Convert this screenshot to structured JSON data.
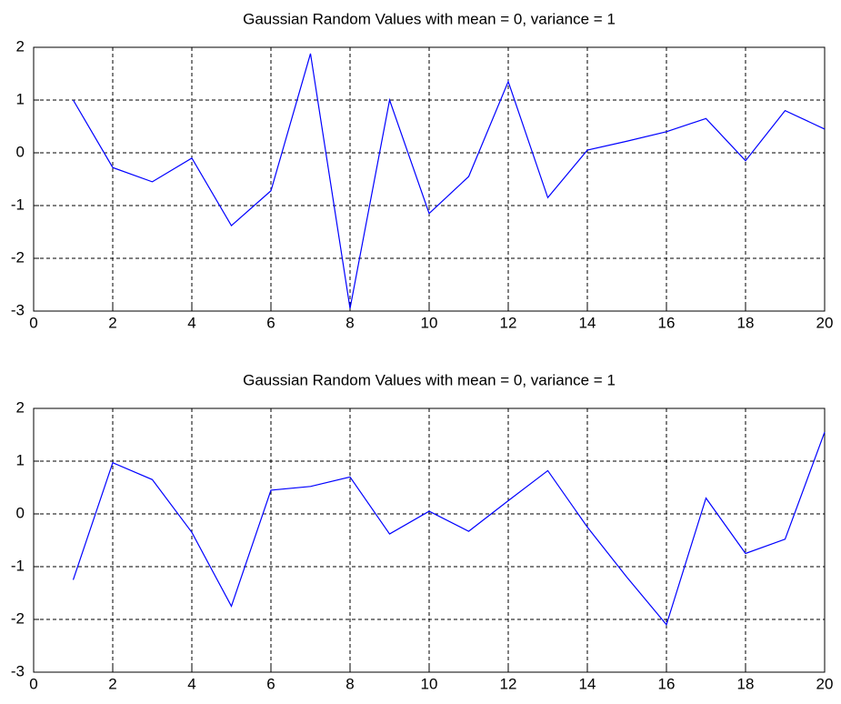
{
  "chart_data": [
    {
      "type": "line",
      "title": "Gaussian Random Values with mean = 0, variance = 1",
      "x": [
        1,
        2,
        3,
        4,
        5,
        6,
        7,
        8,
        9,
        10,
        11,
        12,
        13,
        14,
        15,
        16,
        17,
        18,
        19,
        20
      ],
      "values": [
        1.0,
        -0.28,
        -0.55,
        -0.1,
        -1.38,
        -0.72,
        1.88,
        -2.95,
        1.0,
        -1.15,
        -0.45,
        1.35,
        -0.85,
        0.05,
        0.22,
        0.4,
        0.65,
        -0.15,
        0.8,
        0.45
      ],
      "color": "#0000ff",
      "xlim": [
        0,
        20
      ],
      "xticks": [
        0,
        2,
        4,
        6,
        8,
        10,
        12,
        14,
        16,
        18,
        20
      ],
      "ylim": [
        -3,
        2
      ],
      "yticks": [
        -3,
        -2,
        -1,
        0,
        1,
        2
      ],
      "grid": true
    },
    {
      "type": "line",
      "title": "Gaussian Random Values with mean = 0, variance = 1",
      "x": [
        1,
        2,
        3,
        4,
        5,
        6,
        7,
        8,
        9,
        10,
        11,
        12,
        13,
        14,
        15,
        16,
        17,
        18,
        19,
        20
      ],
      "values": [
        -1.25,
        0.97,
        0.65,
        -0.35,
        -1.75,
        0.45,
        0.52,
        0.7,
        -0.38,
        0.05,
        -0.33,
        0.25,
        0.82,
        -0.25,
        -1.2,
        -2.1,
        0.3,
        -0.75,
        -0.48,
        1.55
      ],
      "color": "#0000ff",
      "xlim": [
        0,
        20
      ],
      "xticks": [
        0,
        2,
        4,
        6,
        8,
        10,
        12,
        14,
        16,
        18,
        20
      ],
      "ylim": [
        -3,
        2
      ],
      "yticks": [
        -3,
        -2,
        -1,
        0,
        1,
        2
      ],
      "grid": true
    }
  ]
}
